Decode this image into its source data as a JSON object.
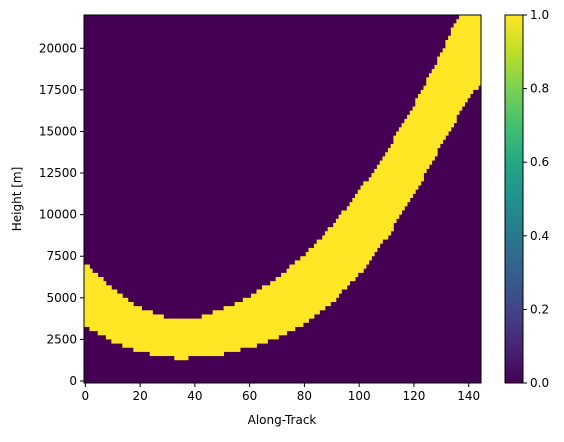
{
  "chart_data": {
    "type": "heatmap",
    "title": "",
    "xlabel": "Along-Track",
    "ylabel": "Height [m]",
    "xlim": [
      -0.5,
      144.5
    ],
    "ylim": [
      -120,
      22000
    ],
    "x_ticks": [
      0,
      20,
      40,
      60,
      80,
      100,
      120,
      140
    ],
    "y_ticks": [
      0,
      2500,
      5000,
      7500,
      10000,
      12500,
      15000,
      17500,
      20000
    ],
    "x_tick_labels": [
      "0",
      "20",
      "40",
      "60",
      "80",
      "100",
      "120",
      "140"
    ],
    "y_tick_labels": [
      "0",
      "2500",
      "5000",
      "7500",
      "10000",
      "12500",
      "15000",
      "17500",
      "20000"
    ],
    "n_columns": 145,
    "value_range": [
      0,
      1
    ],
    "colormap": "viridis",
    "colors": {
      "low": "#440154",
      "high": "#fde725"
    },
    "band_value": 1,
    "background_value": 0,
    "band_bottom_m": [
      {
        "x": 0,
        "y": 3300
      },
      {
        "x": 10,
        "y": 2350
      },
      {
        "x": 20,
        "y": 1750
      },
      {
        "x": 30,
        "y": 1400
      },
      {
        "x": 35,
        "y": 1350
      },
      {
        "x": 40,
        "y": 1400
      },
      {
        "x": 50,
        "y": 1600
      },
      {
        "x": 60,
        "y": 2000
      },
      {
        "x": 70,
        "y": 2600
      },
      {
        "x": 80,
        "y": 3400
      },
      {
        "x": 90,
        "y": 4700
      },
      {
        "x": 100,
        "y": 6400
      },
      {
        "x": 110,
        "y": 8600
      },
      {
        "x": 120,
        "y": 11200
      },
      {
        "x": 130,
        "y": 14200
      },
      {
        "x": 140,
        "y": 17000
      },
      {
        "x": 144,
        "y": 17800
      }
    ],
    "band_top_m": [
      {
        "x": 0,
        "y": 7100
      },
      {
        "x": 10,
        "y": 5500
      },
      {
        "x": 20,
        "y": 4400
      },
      {
        "x": 30,
        "y": 3750
      },
      {
        "x": 35,
        "y": 3700
      },
      {
        "x": 40,
        "y": 3750
      },
      {
        "x": 50,
        "y": 4300
      },
      {
        "x": 60,
        "y": 5100
      },
      {
        "x": 70,
        "y": 6200
      },
      {
        "x": 80,
        "y": 7600
      },
      {
        "x": 90,
        "y": 9300
      },
      {
        "x": 100,
        "y": 11400
      },
      {
        "x": 110,
        "y": 13800
      },
      {
        "x": 120,
        "y": 16600
      },
      {
        "x": 130,
        "y": 19700
      },
      {
        "x": 134,
        "y": 21200
      },
      {
        "x": 137,
        "y": 22000
      },
      {
        "x": 144,
        "y": 22000
      }
    ],
    "colorbar": {
      "ticks": [
        0.0,
        0.2,
        0.4,
        0.6,
        0.8,
        1.0
      ],
      "tick_labels": [
        "0.0",
        "0.2",
        "0.4",
        "0.6",
        "0.8",
        "1.0"
      ]
    }
  }
}
